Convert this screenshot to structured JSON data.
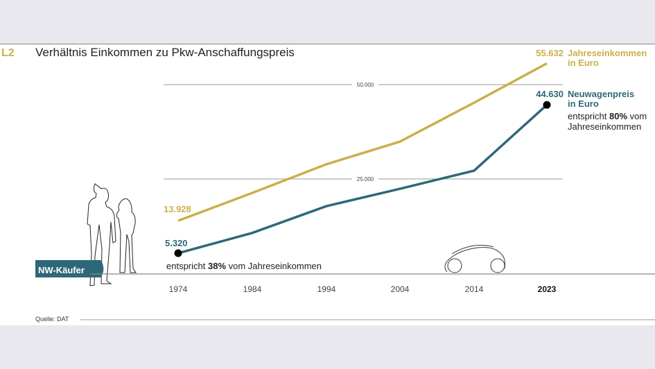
{
  "chart_data": {
    "type": "line",
    "chart_id": "L2",
    "title": "Verhältnis Einkommen zu Pkw-Anschaffungspreis",
    "categories": [
      "1974",
      "1984",
      "1994",
      "2004",
      "2014",
      "2023"
    ],
    "highlight_category": "2023",
    "ylim": [
      0,
      60000
    ],
    "yticks": [
      {
        "value": 25000,
        "label": "25.000"
      },
      {
        "value": 50000,
        "label": "50.000"
      }
    ],
    "grid": true,
    "series": [
      {
        "name": "Jahreseinkommen in Euro",
        "name_lines": [
          "Jahreseinkommen",
          "in Euro"
        ],
        "color": "#c9b04a",
        "values": [
          13928,
          21300,
          28900,
          34900,
          45200,
          55632
        ],
        "start_label": "13.928",
        "end_label": "55.632"
      },
      {
        "name": "Neuwagenpreis in Euro",
        "name_lines": [
          "Neuwagenpreis",
          "in Euro"
        ],
        "color": "#2e6878",
        "values": [
          5320,
          10700,
          17800,
          22400,
          27200,
          44630
        ],
        "start_label": "5.320",
        "end_label": "44.630"
      }
    ],
    "annotations": {
      "start": {
        "pre": "entspricht ",
        "bold": "38%",
        "post": " vom Jahreseinkommen"
      },
      "end": {
        "pre": "entspricht ",
        "bold": "80%",
        "post": " vom",
        "line2": "Jahreseinkommen"
      }
    },
    "badge": "NW-Käufer",
    "source": "Quelle: DAT",
    "marker_color": "#000000"
  }
}
